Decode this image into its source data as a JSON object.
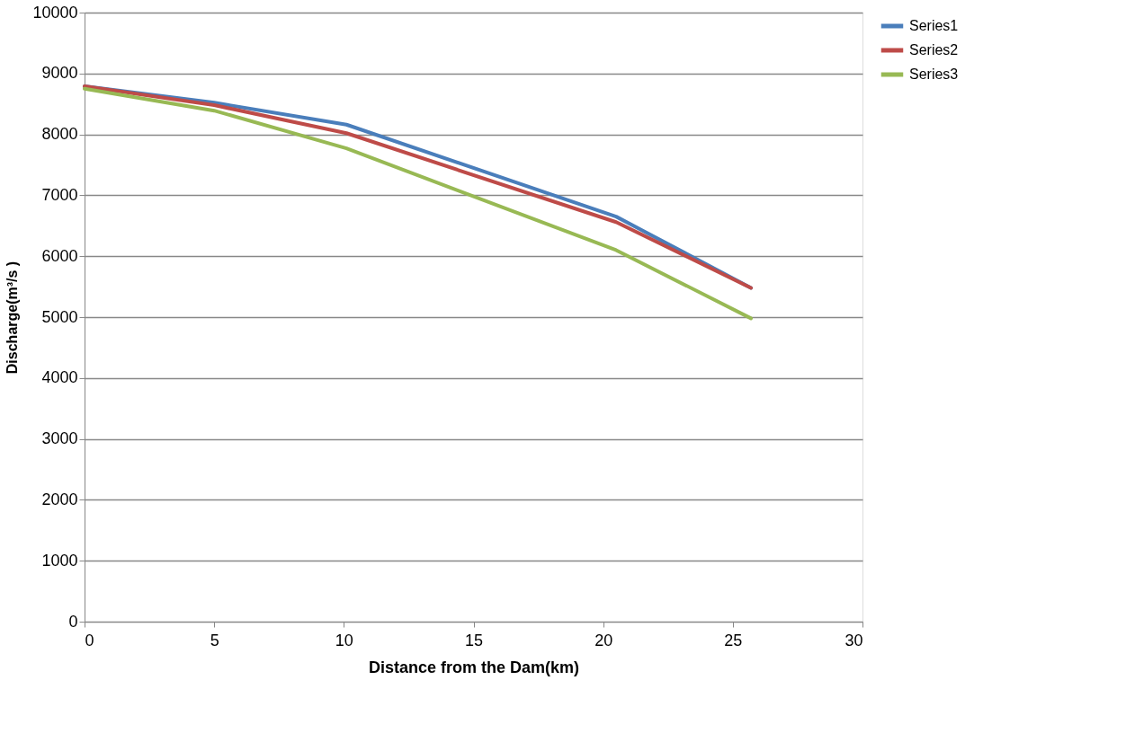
{
  "chart_data": {
    "type": "line",
    "xlabel": "Distance from the Dam(km)",
    "ylabel": "Discharge(m³/s )",
    "x": [
      0,
      5,
      10.1,
      20.5,
      25.7
    ],
    "series": [
      {
        "name": "Series1",
        "color": "#4a7ebb",
        "values": [
          8790,
          8520,
          8160,
          6650,
          5480
        ]
      },
      {
        "name": "Series2",
        "color": "#be4b48",
        "values": [
          8790,
          8480,
          8020,
          6560,
          5480
        ]
      },
      {
        "name": "Series3",
        "color": "#98b954",
        "values": [
          8750,
          8390,
          7770,
          6100,
          4980
        ]
      }
    ],
    "xlim": [
      0,
      30
    ],
    "xticks": [
      0,
      5,
      10,
      15,
      20,
      25,
      30
    ],
    "ylim": [
      0,
      10000
    ],
    "yticks": [
      0,
      1000,
      2000,
      3000,
      4000,
      5000,
      6000,
      7000,
      8000,
      9000,
      10000
    ],
    "grid": "y",
    "legend": "right",
    "marker": "none",
    "line_style": "solid"
  }
}
